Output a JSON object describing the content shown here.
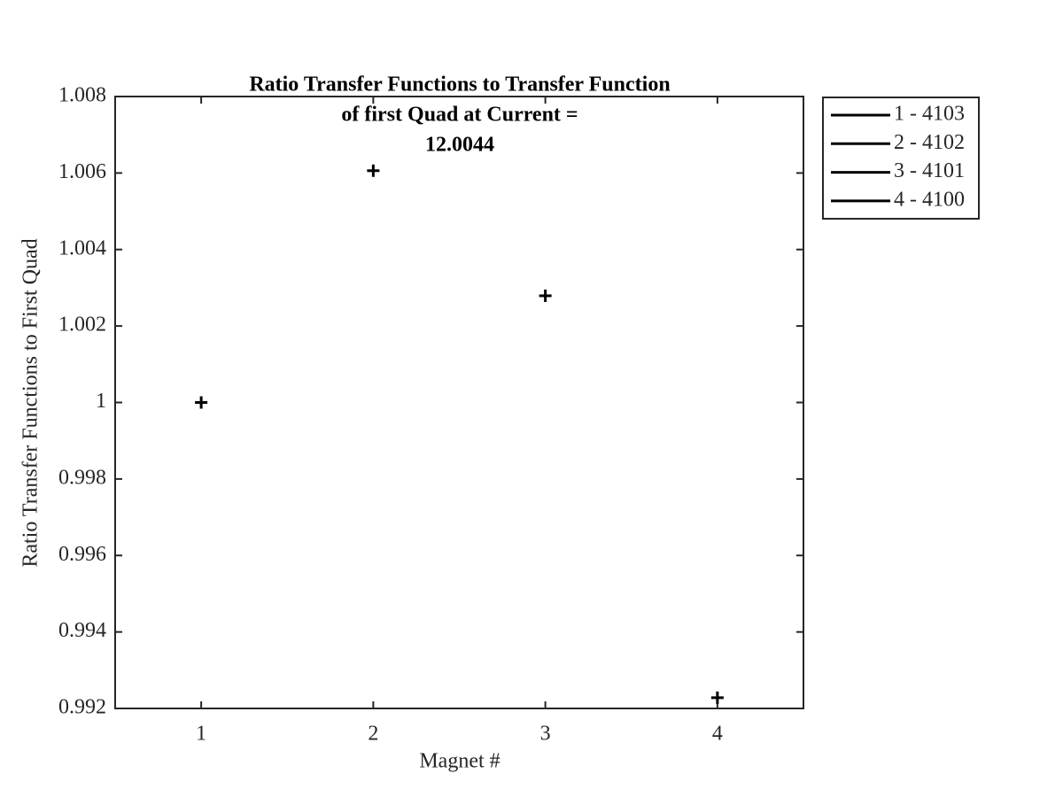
{
  "chart_data": {
    "type": "scatter",
    "title": [
      "Ratio Transfer Functions to Transfer Function",
      "of first Quad at Current  =",
      "12.0044"
    ],
    "xlabel": "Magnet #",
    "ylabel": "Ratio Transfer Functions to First Quad",
    "x": [
      1,
      2,
      3,
      4
    ],
    "series": [
      {
        "name": "1 - 4103",
        "color": "#000000",
        "values": [
          1.0,
          null,
          null,
          null
        ]
      },
      {
        "name": "2 - 4102",
        "color": "#000000",
        "values": [
          null,
          1.00606,
          null,
          null
        ]
      },
      {
        "name": "3 - 4101",
        "color": "#000000",
        "values": [
          null,
          null,
          1.00279,
          null
        ]
      },
      {
        "name": "4 - 4100",
        "color": "#000000",
        "values": [
          null,
          null,
          null,
          0.99228
        ]
      }
    ],
    "xlim": [
      0.5,
      4.5
    ],
    "xticks": [
      1,
      2,
      3,
      4
    ],
    "ylim": [
      0.992,
      1.008
    ],
    "yticks": [
      0.992,
      0.994,
      0.996,
      0.998,
      1,
      1.002,
      1.004,
      1.006,
      1.008
    ],
    "marker": "+",
    "grid": false,
    "legend": "outside-top-right"
  }
}
